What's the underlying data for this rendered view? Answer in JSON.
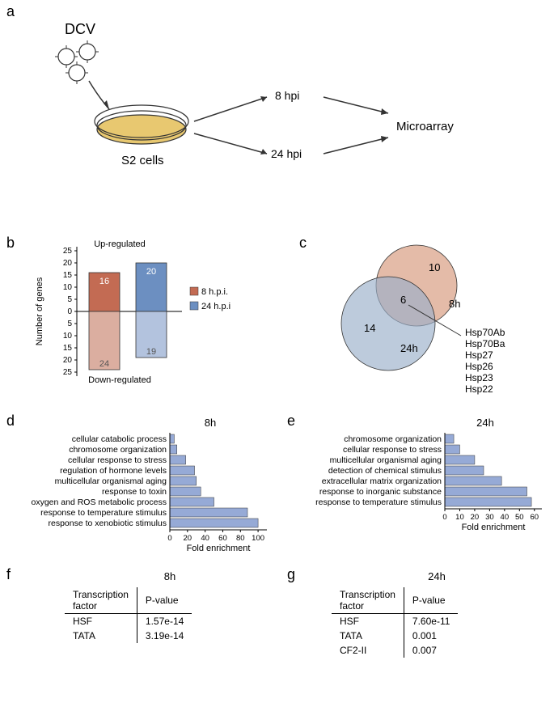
{
  "panel_a": {
    "label": "a",
    "dcv_label": "DCV",
    "s2_label": "S2 cells",
    "t1_label": "8 hpi",
    "t2_label": "24 hpi",
    "result_label": "Microarray"
  },
  "panel_b": {
    "label": "b",
    "type": "bar",
    "title_up": "Up-regulated",
    "title_down": "Down-regulated",
    "ylabel": "Number of genes",
    "yticks": [
      0,
      5,
      10,
      15,
      20,
      25
    ],
    "ylim": [
      -25,
      25
    ],
    "series": [
      {
        "name": "8 h.p.i.",
        "up": 16,
        "down": 24,
        "up_color": "#c36b53",
        "down_color": "#dbaea0"
      },
      {
        "name": "24 h.p.i",
        "up": 20,
        "down": 19,
        "up_color": "#6c8fc1",
        "down_color": "#b3c3de"
      }
    ],
    "legend_fontsize": 11,
    "axis_fontsize": 10
  },
  "panel_c": {
    "label": "c",
    "type": "venn",
    "set1": {
      "name": "8h",
      "only": 10,
      "color": "#d69679",
      "opacity": 0.65
    },
    "set2": {
      "name": "24h",
      "only": 14,
      "color": "#99afc9",
      "opacity": 0.65
    },
    "overlap": 6,
    "genes": [
      "Hsp70Ab",
      "Hsp70Ba",
      "Hsp27",
      "Hsp26",
      "Hsp23",
      "Hsp22"
    ]
  },
  "panel_d": {
    "label": "d",
    "type": "horizontal_bar",
    "title": "8h",
    "xlabel": "Fold enrichment",
    "xlim": [
      0,
      110
    ],
    "xticks": [
      0,
      20,
      40,
      60,
      80,
      100
    ],
    "bar_color": "#96aad6",
    "items": [
      {
        "label": "cellular catabolic process",
        "value": 5
      },
      {
        "label": "chromosome organization",
        "value": 8
      },
      {
        "label": "cellular response to stress",
        "value": 18
      },
      {
        "label": "regulation of hormone levels",
        "value": 28
      },
      {
        "label": "multicellular organismal aging",
        "value": 30
      },
      {
        "label": "response to toxin",
        "value": 35
      },
      {
        "label": "oxygen and ROS metabolic process",
        "value": 50
      },
      {
        "label": "response to temperature stimulus",
        "value": 88
      },
      {
        "label": "response to xenobiotic stimulus",
        "value": 100
      }
    ]
  },
  "panel_e": {
    "label": "e",
    "type": "horizontal_bar",
    "title": "24h",
    "xlabel": "Fold enrichment",
    "xlim": [
      0,
      65
    ],
    "xticks": [
      0,
      10,
      20,
      30,
      40,
      50,
      60
    ],
    "bar_color": "#96aad6",
    "items": [
      {
        "label": "chromosome organization",
        "value": 6
      },
      {
        "label": "cellular response to stress",
        "value": 10
      },
      {
        "label": "multicellular organismal aging",
        "value": 20
      },
      {
        "label": "detection of chemical stimulus",
        "value": 26
      },
      {
        "label": "extracellular matrix organization",
        "value": 38
      },
      {
        "label": "response to inorganic substance",
        "value": 55
      },
      {
        "label": "response to temperature stimulus",
        "value": 58
      }
    ]
  },
  "panel_f": {
    "label": "f",
    "type": "table",
    "title": "8h",
    "columns": [
      "Transcription factor",
      "P-value"
    ],
    "rows": [
      [
        "HSF",
        "1.57e-14"
      ],
      [
        "TATA",
        "3.19e-14"
      ]
    ]
  },
  "panel_g": {
    "label": "g",
    "type": "table",
    "title": "24h",
    "columns": [
      "Transcription factor",
      "P-value"
    ],
    "rows": [
      [
        "HSF",
        "7.60e-11"
      ],
      [
        "TATA",
        "0.001"
      ],
      [
        "CF2-II",
        "0.007"
      ]
    ]
  }
}
